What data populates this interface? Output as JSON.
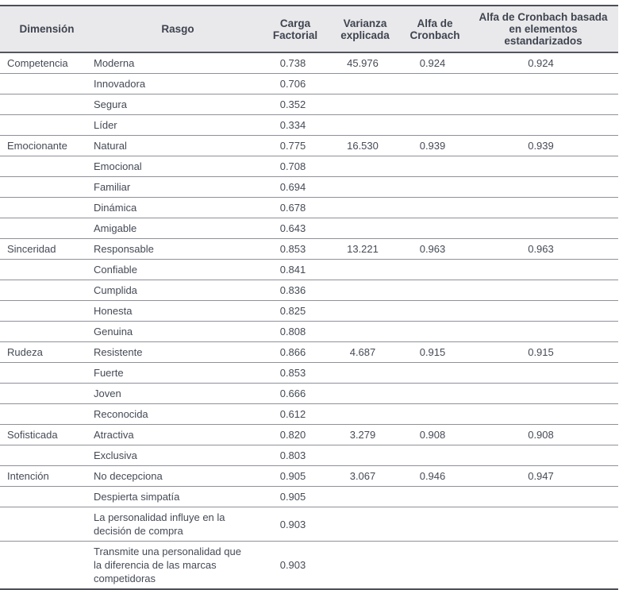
{
  "colors": {
    "header_background": "#e9e9eb",
    "text": "#454a55",
    "heavy_rule": "#4d4f57",
    "row_rule": "#8f9199"
  },
  "table": {
    "columns": [
      {
        "key": "dimension",
        "label": "Dimensión"
      },
      {
        "key": "rasgo",
        "label": "Rasgo"
      },
      {
        "key": "carga",
        "label": "Carga Factorial"
      },
      {
        "key": "varianza",
        "label": "Varianza explicada"
      },
      {
        "key": "alfa",
        "label": "Alfa de Cronbach"
      },
      {
        "key": "alfa_std",
        "label": "Alfa de Cronbach basada en elementos estandarizados"
      }
    ],
    "rows": [
      {
        "dimension": "Competencia",
        "rasgo": "Moderna",
        "carga": "0.738",
        "varianza": "45.976",
        "alfa": "0.924",
        "alfa_std": "0.924"
      },
      {
        "dimension": "",
        "rasgo": "Innovadora",
        "carga": "0.706",
        "varianza": "",
        "alfa": "",
        "alfa_std": ""
      },
      {
        "dimension": "",
        "rasgo": "Segura",
        "carga": "0.352",
        "varianza": "",
        "alfa": "",
        "alfa_std": ""
      },
      {
        "dimension": "",
        "rasgo": "Líder",
        "carga": "0.334",
        "varianza": "",
        "alfa": "",
        "alfa_std": ""
      },
      {
        "dimension": "Emocionante",
        "rasgo": "Natural",
        "carga": "0.775",
        "varianza": "16.530",
        "alfa": "0.939",
        "alfa_std": "0.939"
      },
      {
        "dimension": "",
        "rasgo": "Emocional",
        "carga": "0.708",
        "varianza": "",
        "alfa": "",
        "alfa_std": ""
      },
      {
        "dimension": "",
        "rasgo": "Familiar",
        "carga": "0.694",
        "varianza": "",
        "alfa": "",
        "alfa_std": ""
      },
      {
        "dimension": "",
        "rasgo": "Dinámica",
        "carga": "0.678",
        "varianza": "",
        "alfa": "",
        "alfa_std": ""
      },
      {
        "dimension": "",
        "rasgo": "Amigable",
        "carga": "0.643",
        "varianza": "",
        "alfa": "",
        "alfa_std": ""
      },
      {
        "dimension": "Sinceridad",
        "rasgo": "Responsable",
        "carga": "0.853",
        "varianza": "13.221",
        "alfa": "0.963",
        "alfa_std": "0.963"
      },
      {
        "dimension": "",
        "rasgo": "Confiable",
        "carga": "0.841",
        "varianza": "",
        "alfa": "",
        "alfa_std": ""
      },
      {
        "dimension": "",
        "rasgo": "Cumplida",
        "carga": "0.836",
        "varianza": "",
        "alfa": "",
        "alfa_std": ""
      },
      {
        "dimension": "",
        "rasgo": "Honesta",
        "carga": "0.825",
        "varianza": "",
        "alfa": "",
        "alfa_std": ""
      },
      {
        "dimension": "",
        "rasgo": "Genuina",
        "carga": "0.808",
        "varianza": "",
        "alfa": "",
        "alfa_std": ""
      },
      {
        "dimension": "Rudeza",
        "rasgo": "Resistente",
        "carga": "0.866",
        "varianza": "4.687",
        "alfa": "0.915",
        "alfa_std": "0.915"
      },
      {
        "dimension": "",
        "rasgo": "Fuerte",
        "carga": "0.853",
        "varianza": "",
        "alfa": "",
        "alfa_std": ""
      },
      {
        "dimension": "",
        "rasgo": "Joven",
        "carga": "0.666",
        "varianza": "",
        "alfa": "",
        "alfa_std": ""
      },
      {
        "dimension": "",
        "rasgo": "Reconocida",
        "carga": "0.612",
        "varianza": "",
        "alfa": "",
        "alfa_std": ""
      },
      {
        "dimension": "Sofisticada",
        "rasgo": "Atractiva",
        "carga": "0.820",
        "varianza": "3.279",
        "alfa": "0.908",
        "alfa_std": "0.908"
      },
      {
        "dimension": "",
        "rasgo": "Exclusiva",
        "carga": "0.803",
        "varianza": "",
        "alfa": "",
        "alfa_std": ""
      },
      {
        "dimension": "Intención",
        "rasgo": "No decepciona",
        "carga": "0.905",
        "varianza": "3.067",
        "alfa": "0.946",
        "alfa_std": "0.947"
      },
      {
        "dimension": "",
        "rasgo": "Despierta simpatía",
        "carga": "0.905",
        "varianza": "",
        "alfa": "",
        "alfa_std": ""
      },
      {
        "dimension": "",
        "rasgo": "La personalidad influye en la decisión de compra",
        "carga": "0.903",
        "varianza": "",
        "alfa": "",
        "alfa_std": ""
      },
      {
        "dimension": "",
        "rasgo": "Transmite una personalidad que la diferencia de las marcas competidoras",
        "carga": "0.903",
        "varianza": "",
        "alfa": "",
        "alfa_std": ""
      }
    ]
  }
}
